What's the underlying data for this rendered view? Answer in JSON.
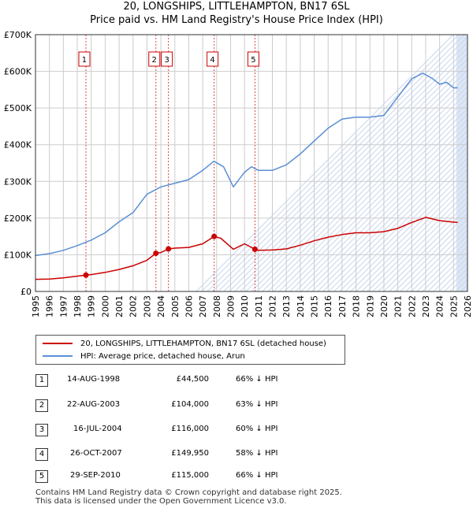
{
  "header": {
    "title_line1": "20, LONGSHIPS, LITTLEHAMPTON, BN17 6SL",
    "title_line2": "Price paid vs. HM Land Registry's House Price Index (HPI)"
  },
  "colors": {
    "property": "#cc0000",
    "hpi": "#5b8fd4",
    "shade": "#dde6f5",
    "grid": "#cccccc"
  },
  "chart_data": {
    "type": "line",
    "title": "20, LONGSHIPS, LITTLEHAMPTON, BN17 6SL",
    "subtitle": "Price paid vs. HM Land Registry's House Price Index (HPI)",
    "xlabel": "",
    "ylabel": "",
    "xlim": [
      1995,
      2026
    ],
    "ylim": [
      0,
      700000
    ],
    "x_ticks": [
      1995,
      1996,
      1997,
      1998,
      1999,
      2000,
      2001,
      2002,
      2003,
      2004,
      2005,
      2006,
      2007,
      2008,
      2009,
      2010,
      2011,
      2012,
      2013,
      2014,
      2015,
      2016,
      2017,
      2018,
      2019,
      2020,
      2021,
      2022,
      2023,
      2024,
      2025,
      2026
    ],
    "y_ticks": [
      {
        "value": 0,
        "label": "£0"
      },
      {
        "value": 100000,
        "label": "£100K"
      },
      {
        "value": 200000,
        "label": "£200K"
      },
      {
        "value": 300000,
        "label": "£300K"
      },
      {
        "value": 400000,
        "label": "£400K"
      },
      {
        "value": 500000,
        "label": "£500K"
      },
      {
        "value": 600000,
        "label": "£600K"
      },
      {
        "value": 700000,
        "label": "£700K"
      }
    ],
    "grid": true,
    "forecast_start": 2025.2,
    "series": [
      {
        "name": "20, LONGSHIPS, LITTLEHAMPTON, BN17 6SL (detached house)",
        "color": "#cc0000",
        "x": [
          1995,
          1996,
          1997,
          1998.62,
          1999,
          2000,
          2001,
          2002,
          2003,
          2003.64,
          2004,
          2004.54,
          2005,
          2006,
          2007,
          2007.82,
          2008.3,
          2009.2,
          2010,
          2010.75,
          2011,
          2012,
          2013,
          2014,
          2015,
          2016,
          2017,
          2018,
          2019,
          2020,
          2021,
          2022,
          2023,
          2024,
          2025,
          2025.3
        ],
        "values": [
          33000,
          34000,
          37000,
          44500,
          46000,
          52000,
          60000,
          70000,
          85000,
          104000,
          106000,
          116000,
          118000,
          120000,
          130000,
          149950,
          145000,
          115000,
          130000,
          115000,
          112000,
          113000,
          116000,
          126000,
          138000,
          148000,
          155000,
          160000,
          160000,
          163000,
          172000,
          188000,
          202000,
          193000,
          189000,
          188000
        ]
      },
      {
        "name": "HPI: Average price, detached house, Arun",
        "color": "#5b8fd4",
        "x": [
          1995,
          1996,
          1997,
          1998,
          1999,
          2000,
          2001,
          2002,
          2003,
          2004,
          2005,
          2006,
          2007,
          2007.8,
          2008.5,
          2009.2,
          2010,
          2010.5,
          2011,
          2012,
          2013,
          2014,
          2015,
          2016,
          2017,
          2018,
          2019,
          2020,
          2021,
          2022,
          2022.8,
          2023.5,
          2024,
          2024.5,
          2025,
          2025.3
        ],
        "values": [
          98000,
          103000,
          112000,
          125000,
          140000,
          160000,
          190000,
          215000,
          265000,
          285000,
          295000,
          305000,
          330000,
          355000,
          340000,
          285000,
          325000,
          340000,
          330000,
          330000,
          345000,
          375000,
          410000,
          445000,
          470000,
          475000,
          475000,
          480000,
          530000,
          580000,
          595000,
          580000,
          565000,
          570000,
          555000,
          555000
        ]
      }
    ],
    "sales": [
      {
        "id": "1",
        "date": "14-AUG-1998",
        "x": 1998.62,
        "price": 44500,
        "price_label": "£44,500",
        "hpi_diff": "66% ↓ HPI"
      },
      {
        "id": "2",
        "date": "22-AUG-2003",
        "x": 2003.64,
        "price": 104000,
        "price_label": "£104,000",
        "hpi_diff": "63% ↓ HPI"
      },
      {
        "id": "3",
        "date": "16-JUL-2004",
        "x": 2004.54,
        "price": 116000,
        "price_label": "£116,000",
        "hpi_diff": "60% ↓ HPI"
      },
      {
        "id": "4",
        "date": "26-OCT-2007",
        "x": 2007.82,
        "price": 149950,
        "price_label": "£149,950",
        "hpi_diff": "58% ↓ HPI"
      },
      {
        "id": "5",
        "date": "29-SEP-2010",
        "x": 2010.75,
        "price": 115000,
        "price_label": "£115,000",
        "hpi_diff": "66% ↓ HPI"
      }
    ]
  },
  "legend": {
    "property_label": "20, LONGSHIPS, LITTLEHAMPTON, BN17 6SL (detached house)",
    "hpi_label": "HPI: Average price, detached house, Arun"
  },
  "footer": {
    "line1": "Contains HM Land Registry data © Crown copyright and database right 2025.",
    "line2": "This data is licensed under the Open Government Licence v3.0."
  }
}
